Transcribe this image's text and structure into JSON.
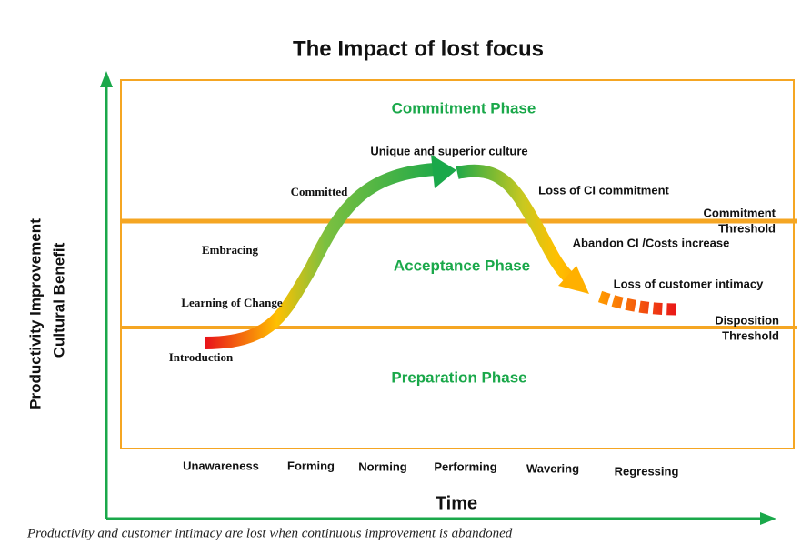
{
  "title": "The Impact of lost focus",
  "y_axis_label": [
    "Productivity Improvement",
    "Cultural Benefit"
  ],
  "x_axis_label": "Time",
  "phases": [
    "Commitment Phase",
    "Acceptance Phase",
    "Preparation Phase"
  ],
  "thresholds": {
    "commitment": [
      "Commitment",
      "Threshold"
    ],
    "disposition": [
      "Disposition",
      "Threshold"
    ]
  },
  "curve_labels": [
    "Introduction",
    "Learning of Change",
    "Embracing",
    "Committed",
    "Unique and superior culture",
    "Loss of CI commitment",
    "Abandon CI /Costs increase",
    "Loss of customer intimacy"
  ],
  "stages": [
    "Unawareness",
    "Forming",
    "Norming",
    "Performing",
    "Wavering",
    "Regressing"
  ],
  "caption": "Productivity and customer intimacy are lost when continuous improvement is abandoned"
}
